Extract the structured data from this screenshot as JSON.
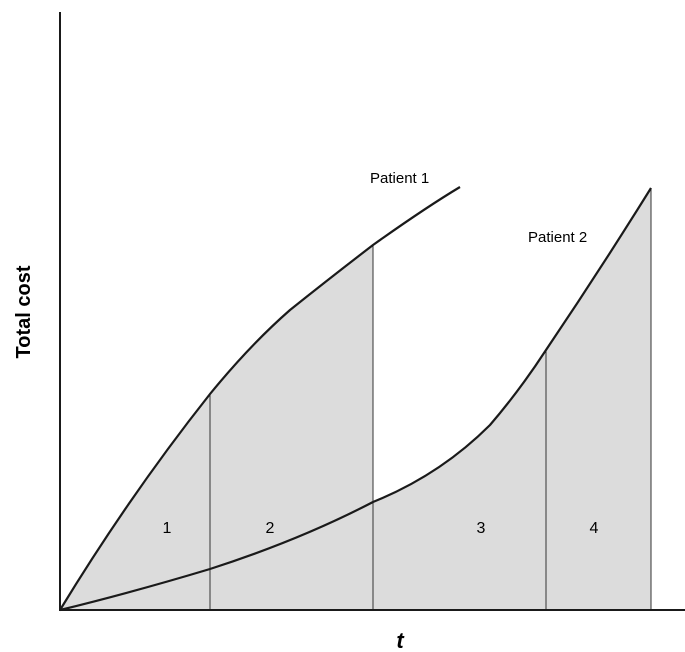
{
  "figure": {
    "y_axis_label": "Total cost",
    "x_axis_label": "t",
    "curves": [
      {
        "label": "Patient 1"
      },
      {
        "label": "Patient 2"
      }
    ],
    "regions": [
      {
        "label": "1"
      },
      {
        "label": "2"
      },
      {
        "label": "3"
      },
      {
        "label": "4"
      }
    ],
    "colors": {
      "shading": "#dcdcdc",
      "line": "#1a1a1a",
      "divider": "#333333"
    }
  }
}
